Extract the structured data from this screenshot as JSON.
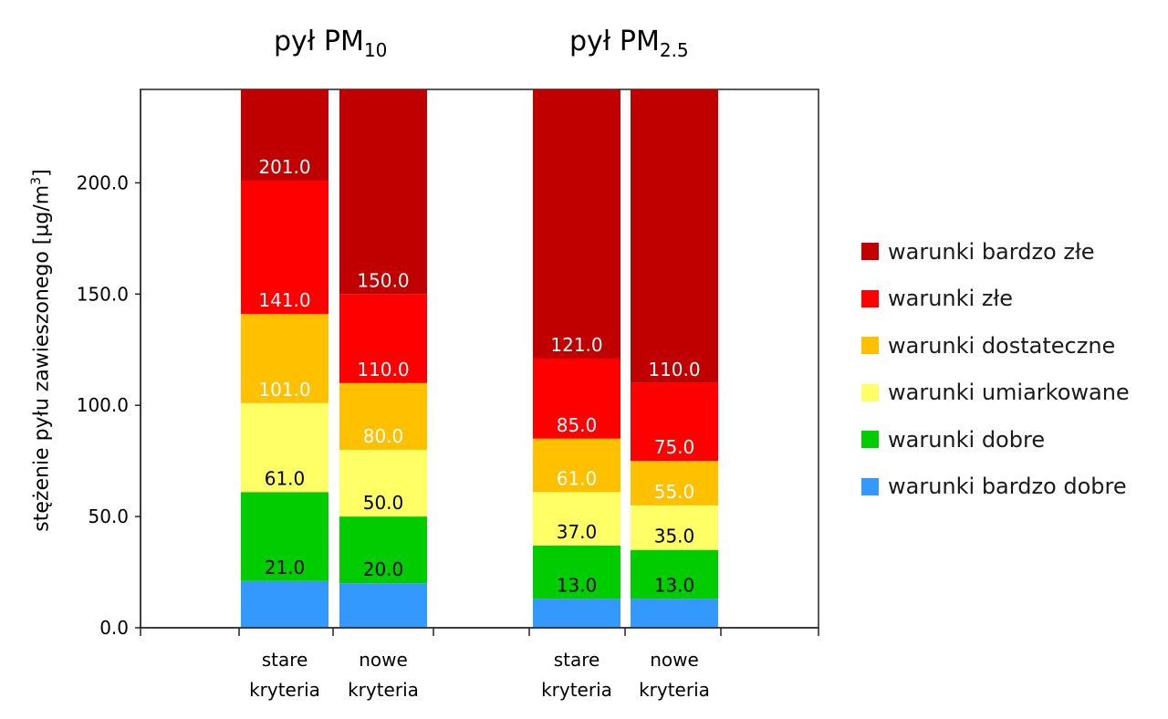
{
  "chart_data": {
    "type": "bar",
    "stacked": true,
    "titles": [
      {
        "main": "pył PM",
        "sub": "10"
      },
      {
        "main": "pył PM",
        "sub": "2.5"
      }
    ],
    "ylabel": {
      "main": "stężenie pyłu zawieszonego [µg/m",
      "sup": "3",
      "end": "]"
    },
    "ylim": [
      0,
      242
    ],
    "yticks": [
      "0.0",
      "50.0",
      "100.0",
      "150.0",
      "200.0"
    ],
    "ytick_values": [
      0,
      50,
      100,
      150,
      200
    ],
    "categories": [
      {
        "line1": "stare",
        "line2": "kryteria"
      },
      {
        "line1": "nowe",
        "line2": "kryteria"
      },
      {
        "line1": "stare",
        "line2": "kryteria"
      },
      {
        "line1": "nowe",
        "line2": "kryteria"
      }
    ],
    "series": [
      {
        "name": "warunki bardzo dobre",
        "color": "#3399ff",
        "values": [
          21,
          20,
          13,
          13
        ],
        "labels": [
          "",
          "",
          "",
          ""
        ]
      },
      {
        "name": "warunki dobre",
        "color": "#00cc00",
        "values": [
          40,
          30,
          24,
          22
        ],
        "labels": [
          "21.0",
          "20.0",
          "13.0",
          "13.0"
        ]
      },
      {
        "name": "warunki umiarkowane",
        "color": "#ffff66",
        "values": [
          40,
          30,
          24,
          20
        ],
        "labels": [
          "61.0",
          "50.0",
          "37.0",
          "35.0"
        ]
      },
      {
        "name": "warunki dostateczne",
        "color": "#ffc000",
        "values": [
          40,
          30,
          24,
          20
        ],
        "labels": [
          "101.0",
          "80.0",
          "61.0",
          "55.0"
        ]
      },
      {
        "name": "warunki złe",
        "color": "#ff0000",
        "values": [
          60,
          40,
          36,
          35
        ],
        "labels": [
          "141.0",
          "110.0",
          "85.0",
          "75.0"
        ]
      },
      {
        "name": "warunki bardzo złe",
        "color": "#c00000",
        "values": [
          41,
          92,
          121,
          132
        ],
        "labels": [
          "201.0",
          "150.0",
          "121.0",
          "110.0"
        ]
      }
    ],
    "label_colors": [
      "#000000",
      "#000000",
      "#000000",
      "#ffffff",
      "#ffffff",
      "#ffffff"
    ],
    "grid": false,
    "legend_position": "right"
  }
}
